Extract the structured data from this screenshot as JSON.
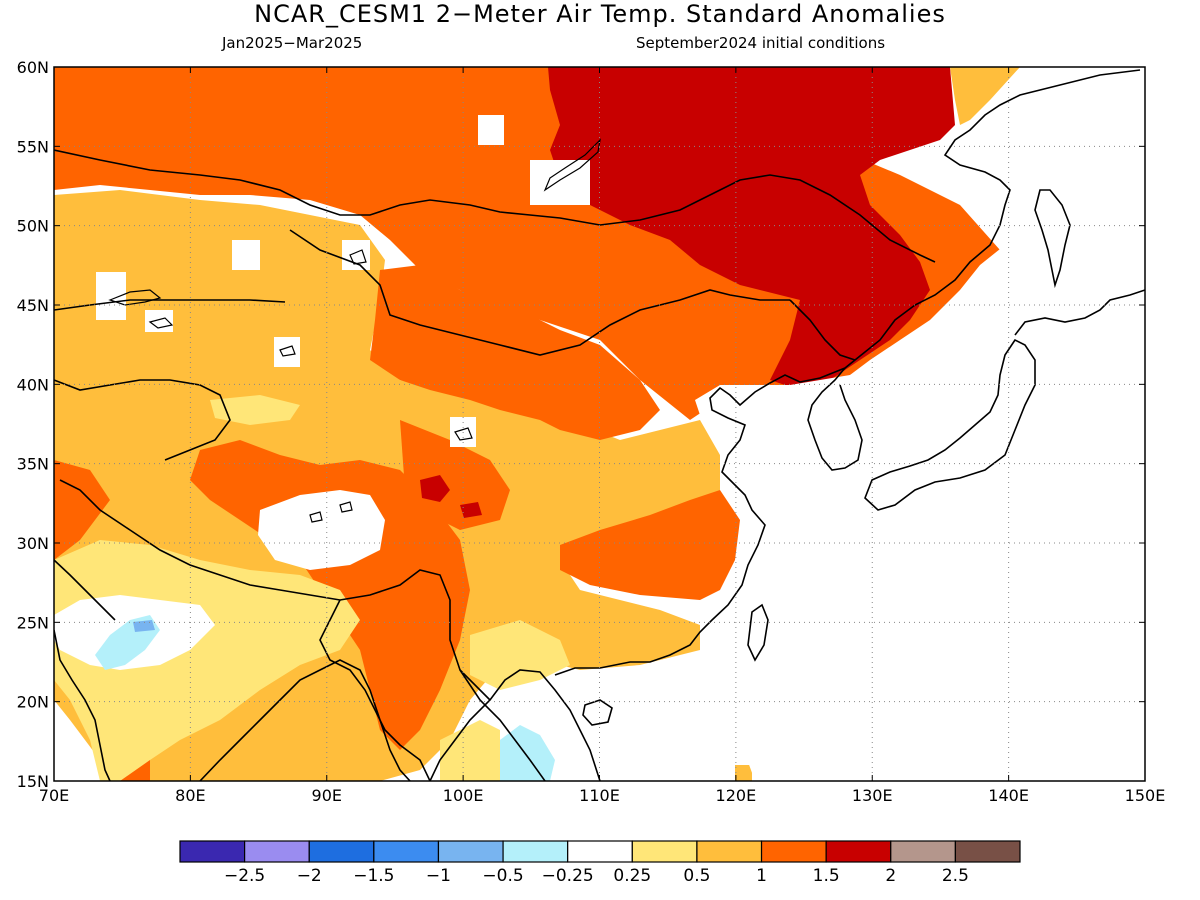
{
  "title": "NCAR_CESM1 2−Meter Air Temp. Standard Anomalies",
  "subtitle_left": "Jan2025−Mar2025",
  "subtitle_right": "September2024 initial conditions",
  "map": {
    "lon_range": [
      70,
      150
    ],
    "lat_range": [
      15,
      60
    ],
    "lon_ticks": [
      {
        "value": 70,
        "label": "70E"
      },
      {
        "value": 80,
        "label": "80E"
      },
      {
        "value": 90,
        "label": "90E"
      },
      {
        "value": 100,
        "label": "100E"
      },
      {
        "value": 110,
        "label": "110E"
      },
      {
        "value": 120,
        "label": "120E"
      },
      {
        "value": 130,
        "label": "130E"
      },
      {
        "value": 140,
        "label": "140E"
      },
      {
        "value": 150,
        "label": "150E"
      }
    ],
    "lat_ticks": [
      {
        "value": 15,
        "label": "15N"
      },
      {
        "value": 20,
        "label": "20N"
      },
      {
        "value": 25,
        "label": "25N"
      },
      {
        "value": 30,
        "label": "30N"
      },
      {
        "value": 35,
        "label": "35N"
      },
      {
        "value": 40,
        "label": "40N"
      },
      {
        "value": 45,
        "label": "45N"
      },
      {
        "value": 50,
        "label": "50N"
      },
      {
        "value": 55,
        "label": "55N"
      },
      {
        "value": 60,
        "label": "60N"
      }
    ],
    "gridlines": "dotted"
  },
  "colorbar": {
    "colors": [
      "#3a28b0",
      "#9a8cf0",
      "#1e6ee0",
      "#3c8cf0",
      "#78b4f0",
      "#b4f0fa",
      "#ffffff",
      "#ffe678",
      "#ffbe3c",
      "#ff6400",
      "#c80000",
      "#b4968c",
      "#785046"
    ],
    "labels": [
      "−2.5",
      "−2",
      "−1.5",
      "−1",
      "−0.5",
      "−0.25",
      "0.25",
      "0.5",
      "1",
      "1.5",
      "2",
      "2.5"
    ]
  }
}
